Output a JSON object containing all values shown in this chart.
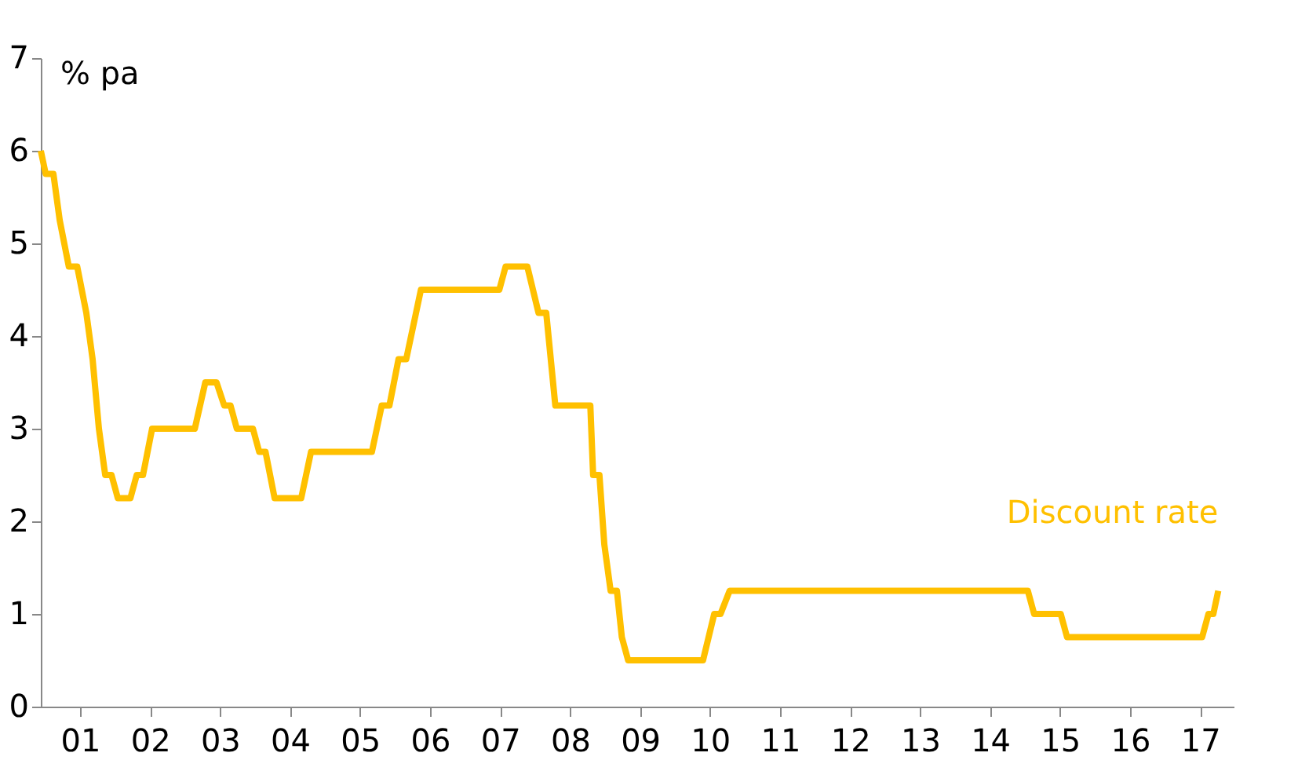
{
  "chart_data": {
    "type": "line",
    "ylabel": "% pa",
    "xlim": [
      2000.44,
      2017.48
    ],
    "ylim": [
      0,
      7
    ],
    "yticks": [
      0,
      1,
      2,
      3,
      4,
      5,
      6,
      7
    ],
    "xticks": [
      {
        "value": 2001,
        "label": "01"
      },
      {
        "value": 2002,
        "label": "02"
      },
      {
        "value": 2003,
        "label": "03"
      },
      {
        "value": 2004,
        "label": "04"
      },
      {
        "value": 2005,
        "label": "05"
      },
      {
        "value": 2006,
        "label": "06"
      },
      {
        "value": 2007,
        "label": "07"
      },
      {
        "value": 2008,
        "label": "08"
      },
      {
        "value": 2009,
        "label": "09"
      },
      {
        "value": 2010,
        "label": "10"
      },
      {
        "value": 2011,
        "label": "11"
      },
      {
        "value": 2012,
        "label": "12"
      },
      {
        "value": 2013,
        "label": "13"
      },
      {
        "value": 2014,
        "label": "14"
      },
      {
        "value": 2015,
        "label": "15"
      },
      {
        "value": 2016,
        "label": "16"
      },
      {
        "value": 2017,
        "label": "17"
      }
    ],
    "grid": false,
    "legend": false,
    "marker": "none",
    "line_style": "solid",
    "series": [
      {
        "name": "Discount rate",
        "color": "#ffc000",
        "x": [
          2000.44,
          2000.51,
          2000.62,
          2000.71,
          2000.84,
          2000.96,
          2001.09,
          2001.18,
          2001.27,
          2001.36,
          2001.45,
          2001.54,
          2001.72,
          2001.81,
          2001.9,
          2002.03,
          2002.64,
          2002.79,
          2002.95,
          2003.06,
          2003.15,
          2003.24,
          2003.47,
          2003.56,
          2003.65,
          2003.78,
          2004.16,
          2004.3,
          2005.17,
          2005.31,
          2005.42,
          2005.55,
          2005.66,
          2005.87,
          2006.99,
          2007.08,
          2007.39,
          2007.55,
          2007.66,
          2007.79,
          2008.29,
          2008.33,
          2008.42,
          2008.49,
          2008.58,
          2008.67,
          2008.74,
          2008.83,
          2009.9,
          2010.06,
          2010.15,
          2010.28,
          2014.54,
          2014.63,
          2015.01,
          2015.1,
          2017.03,
          2017.12,
          2017.19,
          2017.26
        ],
        "values": [
          6.0,
          5.75,
          5.75,
          5.25,
          4.75,
          4.75,
          4.25,
          3.75,
          3.0,
          2.5,
          2.5,
          2.25,
          2.25,
          2.5,
          2.5,
          3.0,
          3.0,
          3.5,
          3.5,
          3.25,
          3.25,
          3.0,
          3.0,
          2.75,
          2.75,
          2.25,
          2.25,
          2.75,
          2.75,
          3.25,
          3.25,
          3.75,
          3.75,
          4.5,
          4.5,
          4.75,
          4.75,
          4.25,
          4.25,
          3.25,
          3.25,
          2.5,
          2.5,
          1.75,
          1.25,
          1.25,
          0.75,
          0.5,
          0.5,
          1.0,
          1.0,
          1.25,
          1.25,
          1.0,
          1.0,
          0.75,
          0.75,
          1.0,
          1.0,
          1.25
        ]
      }
    ]
  }
}
